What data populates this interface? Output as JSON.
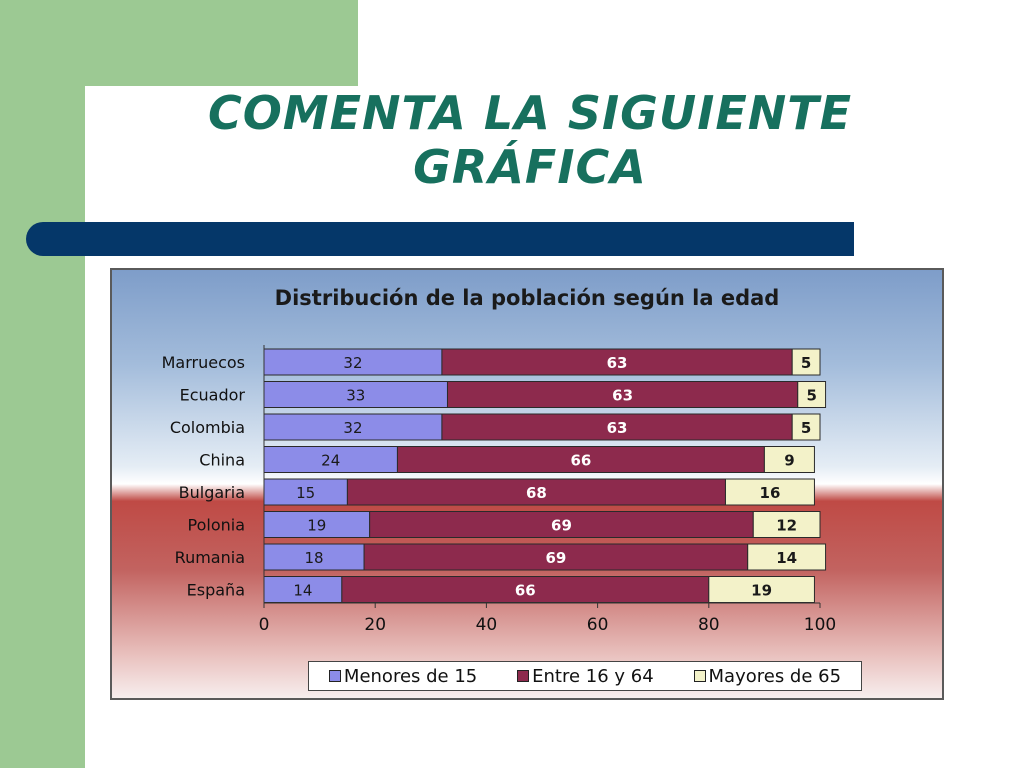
{
  "slide": {
    "title_line1": "COMENTA LA SIGUIENTE",
    "title_line2": "GRÁFICA"
  },
  "colors": {
    "menores": "#8c8ce8",
    "entre": "#8d2a4d",
    "mayores": "#f3f2c9",
    "accent_green": "#9cc993",
    "title_text": "#17705e",
    "band_blue": "#053769"
  },
  "chart_data": {
    "type": "bar",
    "orientation": "horizontal",
    "stacked": true,
    "title": "Distribución de la población según la edad",
    "categories": [
      "Marruecos",
      "Ecuador",
      "Colombia",
      "China",
      "Bulgaria",
      "Polonia",
      "Rumania",
      "España"
    ],
    "series": [
      {
        "name": "Menores de 15",
        "values": [
          32,
          33,
          32,
          24,
          15,
          19,
          18,
          14
        ]
      },
      {
        "name": "Entre 16 y 64",
        "values": [
          63,
          63,
          63,
          66,
          68,
          69,
          69,
          66
        ]
      },
      {
        "name": "Mayores de 65",
        "values": [
          5,
          5,
          5,
          9,
          16,
          12,
          14,
          19
        ]
      }
    ],
    "xlim": [
      0,
      100
    ],
    "xticks": [
      0,
      20,
      40,
      60,
      80,
      100
    ],
    "legend_position": "bottom"
  }
}
